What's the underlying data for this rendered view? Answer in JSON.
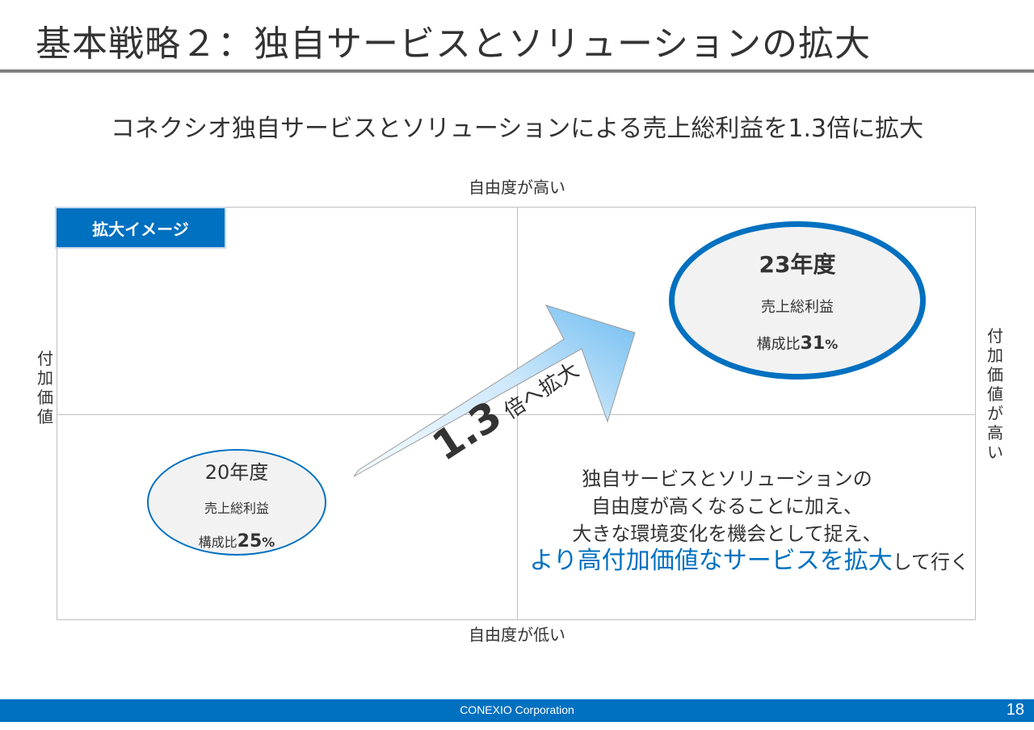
{
  "title": "基本戦略２：独自サービスとソリューションの拡大",
  "subtitle": "コネクシオ独自サービスとソリューションによる売上総利益を1.3倍に拡大",
  "axes": {
    "top": "自由度が高い",
    "bottom": "自由度が低い",
    "left": "付加価値",
    "right": "付加価値が高い"
  },
  "badge": "拡大イメージ",
  "fy20": {
    "year": "20年度",
    "label": "売上総利益",
    "ratio_prefix": "構成比",
    "ratio_value": "25",
    "ratio_unit": "%"
  },
  "fy23": {
    "year": "23年度",
    "label": "売上総利益",
    "ratio_prefix": "構成比",
    "ratio_value": "31",
    "ratio_unit": "%"
  },
  "arrow": {
    "multiplier": "1.3",
    "text": "倍へ拡大"
  },
  "description": {
    "line1": "独自サービスとソリューションの",
    "line2": "自由度が高くなることに加え、",
    "line3": "大きな環境変化を機会として捉え、",
    "line4_emphasis": "より高付加価値なサービスを拡大",
    "line4_rest": "して行く"
  },
  "footer": {
    "company": "CONEXIO Corporation",
    "page": "18"
  },
  "colors": {
    "accent": "#0070c0",
    "rule": "#7f7f7f",
    "ellipse_fill": "#f2f2f2",
    "arrow_light": "#eaf5ff",
    "arrow_dark": "#7cc4f2"
  }
}
